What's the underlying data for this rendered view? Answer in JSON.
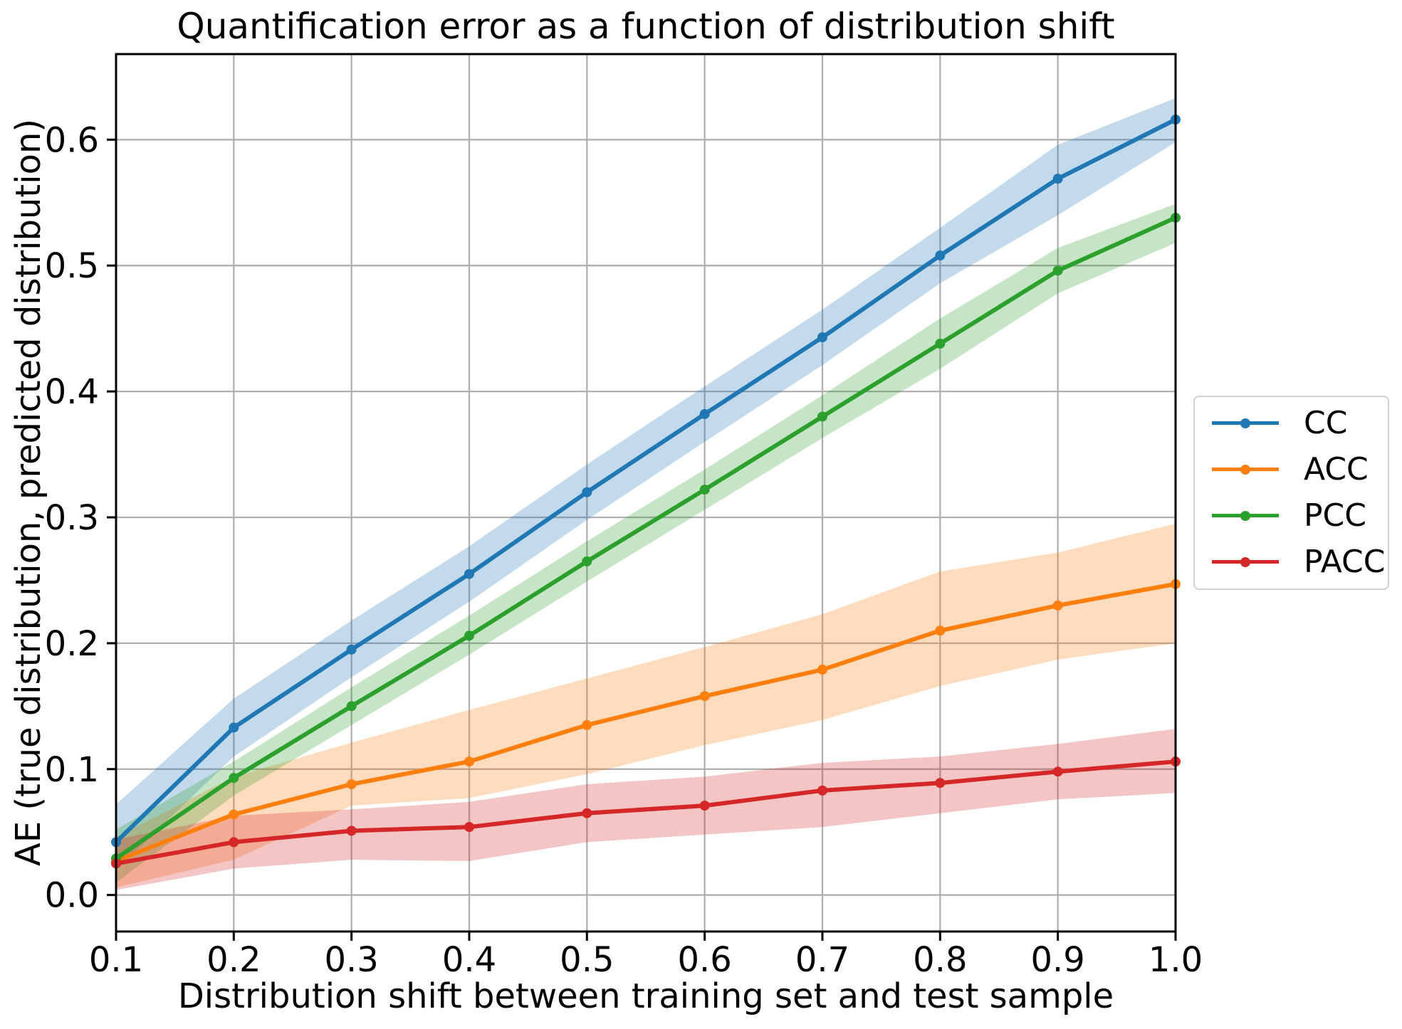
{
  "chart_data": {
    "type": "line",
    "title": "Quantification error as a function of distribution shift",
    "xlabel": "Distribution shift between training set and test sample",
    "ylabel": "AE (true distribution, predicted distribution)",
    "x": [
      0.1,
      0.2,
      0.3,
      0.4,
      0.5,
      0.6,
      0.7,
      0.8,
      0.9,
      1.0
    ],
    "xlim": [
      0.1,
      1.0
    ],
    "ylim": [
      -0.029,
      0.668
    ],
    "xtick_values": [
      0.1,
      0.2,
      0.3,
      0.4,
      0.5,
      0.6,
      0.7,
      0.8,
      0.9,
      1.0
    ],
    "xtick_labels": [
      "0.1",
      "0.2",
      "0.3",
      "0.4",
      "0.5",
      "0.6",
      "0.7",
      "0.8",
      "0.9",
      "1.0"
    ],
    "ytick_values": [
      0.0,
      0.1,
      0.2,
      0.3,
      0.4,
      0.5,
      0.6
    ],
    "ytick_labels": [
      "0.0",
      "0.1",
      "0.2",
      "0.3",
      "0.4",
      "0.5",
      "0.6"
    ],
    "grid": true,
    "band_opacity": 0.27,
    "legend": {
      "position": "right-outside",
      "entries": [
        "CC",
        "ACC",
        "PCC",
        "PACC"
      ]
    },
    "series": [
      {
        "name": "CC",
        "color": "#1f77b4",
        "values": [
          0.042,
          0.133,
          0.195,
          0.255,
          0.32,
          0.382,
          0.443,
          0.508,
          0.569,
          0.616
        ],
        "band_upper": [
          0.072,
          0.156,
          0.218,
          0.277,
          0.342,
          0.404,
          0.465,
          0.53,
          0.596,
          0.633
        ],
        "band_lower": [
          0.02,
          0.11,
          0.173,
          0.233,
          0.298,
          0.36,
          0.421,
          0.486,
          0.54,
          0.598
        ]
      },
      {
        "name": "ACC",
        "color": "#ff7f0e",
        "values": [
          0.027,
          0.064,
          0.088,
          0.106,
          0.135,
          0.158,
          0.179,
          0.21,
          0.23,
          0.247
        ],
        "band_upper": [
          0.046,
          0.094,
          0.121,
          0.147,
          0.172,
          0.197,
          0.223,
          0.257,
          0.272,
          0.295
        ],
        "band_lower": [
          0.006,
          0.028,
          0.071,
          0.077,
          0.096,
          0.119,
          0.139,
          0.166,
          0.187,
          0.2
        ]
      },
      {
        "name": "PCC",
        "color": "#2ca02c",
        "values": [
          0.029,
          0.093,
          0.15,
          0.206,
          0.265,
          0.322,
          0.38,
          0.438,
          0.496,
          0.538
        ],
        "band_upper": [
          0.052,
          0.106,
          0.165,
          0.222,
          0.281,
          0.338,
          0.397,
          0.458,
          0.514,
          0.549
        ],
        "band_lower": [
          0.01,
          0.079,
          0.135,
          0.191,
          0.249,
          0.306,
          0.363,
          0.418,
          0.478,
          0.518
        ]
      },
      {
        "name": "PACC",
        "color": "#d62728",
        "values": [
          0.025,
          0.042,
          0.051,
          0.054,
          0.065,
          0.071,
          0.083,
          0.089,
          0.098,
          0.106
        ],
        "band_upper": [
          0.044,
          0.063,
          0.068,
          0.074,
          0.088,
          0.094,
          0.105,
          0.11,
          0.12,
          0.132
        ],
        "band_lower": [
          0.004,
          0.021,
          0.028,
          0.027,
          0.042,
          0.048,
          0.054,
          0.065,
          0.076,
          0.081
        ]
      }
    ]
  },
  "style": {
    "background": "#ffffff",
    "grid_color": "#b0b0b0",
    "spine_color": "#000000",
    "text_color": "#000000",
    "legend_border_color": "#d0d0d0"
  }
}
